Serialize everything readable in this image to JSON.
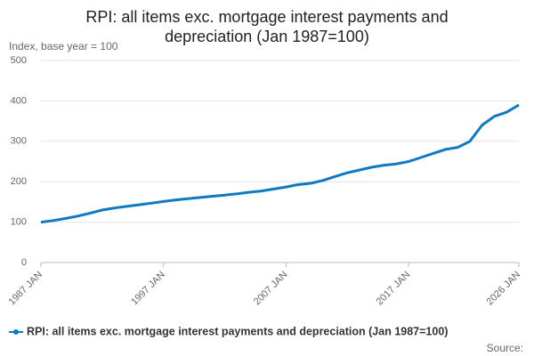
{
  "chart_data": {
    "type": "line",
    "title": "RPI: all items exc. mortgage interest payments and depreciation (Jan 1987=100)",
    "y_label": "Index, base year = 100",
    "source": "Source:",
    "x": [
      "1987 JAN",
      null,
      null,
      null,
      null,
      null,
      null,
      null,
      null,
      null,
      "1997 JAN",
      null,
      null,
      null,
      null,
      null,
      null,
      null,
      null,
      null,
      "2007 JAN",
      null,
      null,
      null,
      null,
      null,
      null,
      null,
      null,
      null,
      "2017 JAN",
      null,
      null,
      null,
      null,
      null,
      null,
      null,
      null,
      "2026 JAN"
    ],
    "series": [
      {
        "name": "RPI: all items exc. mortgage interest payments and depreciation (Jan 1987=100)",
        "color": "#0f7ac0",
        "values": [
          100,
          104,
          109,
          115,
          122,
          130,
          135,
          139,
          143,
          147,
          151,
          155,
          158,
          161,
          164,
          167,
          170,
          174,
          177,
          182,
          187,
          193,
          196,
          203,
          213,
          222,
          229,
          236,
          241,
          244,
          250,
          260,
          270,
          280,
          285,
          300,
          340,
          362,
          372,
          390
        ]
      }
    ],
    "ylim": [
      0,
      500
    ],
    "yticks": [
      0,
      100,
      200,
      300,
      400,
      500
    ],
    "grid": true,
    "legend": "bottom"
  }
}
